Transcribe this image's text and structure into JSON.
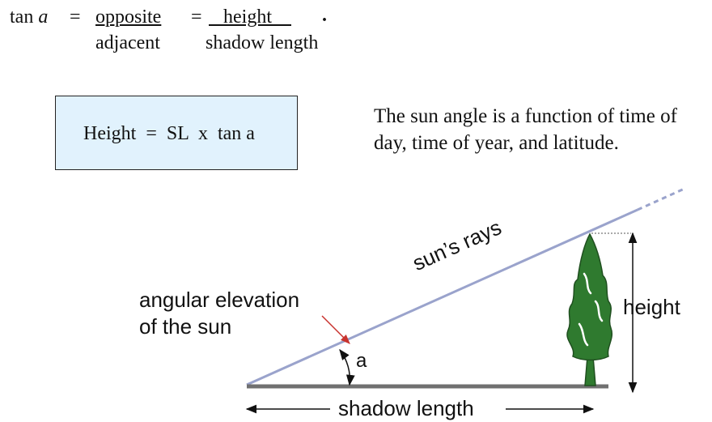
{
  "formula": {
    "lhs": "tan",
    "lhs_var": "a",
    "eq1": "=",
    "numerator1": "opposite",
    "denominator1": "adjacent",
    "eq2": "=",
    "numerator2": "height",
    "period": ".",
    "denominator2": "shadow length"
  },
  "height_box": {
    "text": "Height  =  SL  x  tan a",
    "fill_color": "#e1f2fd"
  },
  "note": {
    "line1": "The sun angle is a function of time of",
    "line2": "day, time of year, and latitude."
  },
  "diagram": {
    "rays_label": "sun’s rays",
    "elevation_label_line1": "angular elevation",
    "elevation_label_line2": "of the sun",
    "angle_label": "a",
    "height_label": "height",
    "shadow_label": "shadow length",
    "ray_color": "#9aa3cc",
    "pointer_color": "#c8332e",
    "tree_color": "#2f7a2f",
    "ground_color": "#707070"
  }
}
